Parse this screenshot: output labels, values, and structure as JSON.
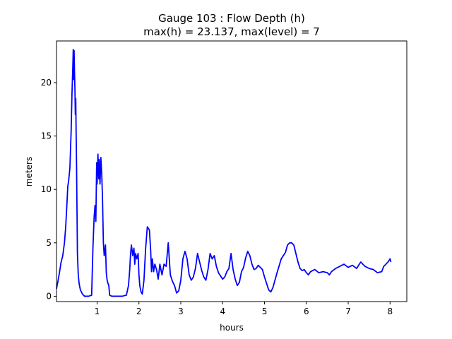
{
  "chart_data": {
    "type": "line",
    "title_line1": "Gauge 103 : Flow Depth (h)",
    "title_line2": "max(h) =  23.137,    max(level) = 7",
    "xlabel": "hours",
    "ylabel": "meters",
    "xlim": [
      0.03,
      8.4
    ],
    "ylim": [
      -0.5,
      23.9
    ],
    "xticks": [
      1,
      2,
      3,
      4,
      5,
      6,
      7,
      8
    ],
    "yticks": [
      0,
      5,
      10,
      15,
      20
    ],
    "grid": false,
    "series": [
      {
        "color": "#0000ff",
        "x": [
          0.03,
          0.06,
          0.1,
          0.14,
          0.18,
          0.22,
          0.25,
          0.28,
          0.3,
          0.32,
          0.35,
          0.38,
          0.4,
          0.42,
          0.43,
          0.44,
          0.45,
          0.46,
          0.47,
          0.48,
          0.49,
          0.5,
          0.51,
          0.52,
          0.53,
          0.55,
          0.57,
          0.6,
          0.65,
          0.7,
          0.8,
          0.87,
          0.9,
          0.93,
          0.95,
          0.97,
          0.99,
          1.0,
          1.02,
          1.04,
          1.05,
          1.07,
          1.09,
          1.11,
          1.13,
          1.15,
          1.17,
          1.2,
          1.22,
          1.24,
          1.26,
          1.28,
          1.3,
          1.35,
          1.4,
          1.45,
          1.5,
          1.6,
          1.7,
          1.75,
          1.78,
          1.8,
          1.82,
          1.85,
          1.88,
          1.9,
          1.92,
          1.95,
          1.98,
          2.0,
          2.02,
          2.05,
          2.08,
          2.12,
          2.16,
          2.2,
          2.25,
          2.28,
          2.3,
          2.32,
          2.35,
          2.38,
          2.42,
          2.46,
          2.5,
          2.55,
          2.6,
          2.65,
          2.7,
          2.75,
          2.8,
          2.85,
          2.9,
          2.95,
          3.0,
          3.05,
          3.1,
          3.15,
          3.2,
          3.25,
          3.3,
          3.35,
          3.4,
          3.45,
          3.5,
          3.55,
          3.6,
          3.65,
          3.7,
          3.75,
          3.8,
          3.85,
          3.9,
          3.95,
          4.0,
          4.05,
          4.1,
          4.15,
          4.2,
          4.25,
          4.3,
          4.35,
          4.4,
          4.45,
          4.5,
          4.55,
          4.6,
          4.65,
          4.7,
          4.75,
          4.8,
          4.85,
          4.9,
          4.95,
          5.0,
          5.05,
          5.1,
          5.15,
          5.2,
          5.3,
          5.4,
          5.5,
          5.55,
          5.6,
          5.65,
          5.7,
          5.75,
          5.8,
          5.85,
          5.9,
          5.95,
          6.0,
          6.05,
          6.1,
          6.2,
          6.3,
          6.4,
          6.5,
          6.55,
          6.6,
          6.7,
          6.8,
          6.9,
          7.0,
          7.1,
          7.2,
          7.3,
          7.4,
          7.5,
          7.6,
          7.7,
          7.8,
          7.85,
          7.9,
          7.95,
          8.0,
          8.02
        ],
        "y": [
          0.7,
          1.3,
          2.2,
          3.2,
          3.8,
          5.0,
          6.5,
          8.7,
          10.3,
          10.8,
          12.0,
          15.5,
          19.0,
          21.5,
          23.1,
          20.3,
          23.0,
          21.0,
          19.5,
          17.0,
          18.5,
          15.0,
          12.0,
          8.0,
          4.0,
          2.0,
          1.2,
          0.6,
          0.2,
          0.0,
          0.0,
          0.1,
          4.5,
          7.5,
          8.5,
          7.0,
          12.5,
          10.5,
          13.3,
          11.0,
          12.8,
          10.5,
          13.0,
          11.5,
          9.0,
          5.0,
          3.8,
          4.8,
          2.2,
          1.5,
          1.2,
          1.0,
          0.1,
          0.0,
          0.0,
          0.0,
          0.0,
          0.0,
          0.1,
          1.0,
          2.5,
          4.0,
          4.8,
          3.8,
          4.5,
          3.0,
          4.0,
          3.5,
          4.0,
          2.0,
          1.0,
          0.4,
          0.2,
          1.5,
          4.5,
          6.5,
          6.2,
          4.3,
          2.3,
          3.5,
          2.3,
          3.0,
          2.5,
          1.6,
          3.0,
          2.0,
          3.0,
          2.8,
          5.0,
          2.0,
          1.4,
          1.0,
          0.3,
          0.5,
          1.5,
          3.5,
          4.2,
          3.5,
          2.0,
          1.5,
          1.8,
          2.6,
          4.0,
          3.2,
          2.4,
          1.8,
          1.5,
          2.5,
          4.0,
          3.5,
          3.8,
          2.8,
          2.2,
          1.9,
          1.6,
          1.8,
          2.3,
          2.6,
          4.0,
          2.5,
          1.6,
          1.0,
          1.3,
          2.3,
          2.7,
          3.6,
          4.2,
          3.8,
          3.0,
          2.5,
          2.6,
          2.9,
          2.7,
          2.5,
          1.8,
          1.2,
          0.6,
          0.4,
          0.8,
          2.2,
          3.5,
          4.1,
          4.8,
          5.0,
          5.0,
          4.8,
          4.0,
          3.2,
          2.6,
          2.4,
          2.5,
          2.2,
          2.0,
          2.3,
          2.5,
          2.2,
          2.3,
          2.2,
          2.0,
          2.3,
          2.6,
          2.8,
          3.0,
          2.7,
          2.9,
          2.6,
          3.2,
          2.8,
          2.6,
          2.5,
          2.2,
          2.3,
          2.8,
          3.0,
          3.2,
          3.5,
          3.2
        ]
      }
    ]
  }
}
